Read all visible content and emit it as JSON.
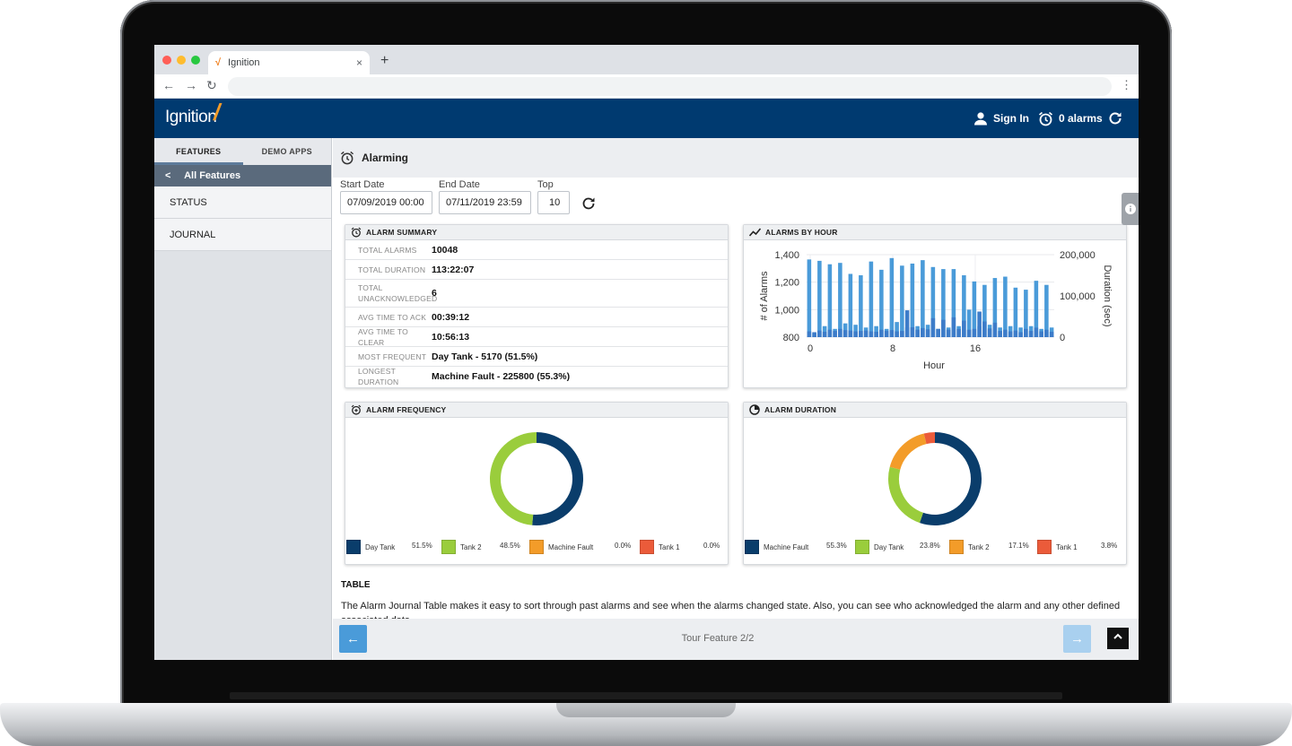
{
  "browser": {
    "tab_title": "Ignition",
    "favicon": "ignition-favicon",
    "new_tab": "+",
    "tab_close": "×",
    "back": "←",
    "forward": "→",
    "reload": "↻",
    "menu": "⋮"
  },
  "header": {
    "logo_text": "Ignition",
    "logo_mark": "/",
    "sign_in": "Sign In",
    "alarms": "0 alarms"
  },
  "sidebar": {
    "tabs": [
      {
        "label": "FEATURES",
        "active": true
      },
      {
        "label": "DEMO APPS",
        "active": false
      }
    ],
    "back_chevron": "<",
    "back_label": "All Features",
    "items": [
      {
        "label": "STATUS"
      },
      {
        "label": "JOURNAL"
      }
    ]
  },
  "main": {
    "title": "Alarming",
    "filters": {
      "start_label": "Start Date",
      "start_value": "07/09/2019 00:00",
      "end_label": "End Date",
      "end_value": "07/11/2019 23:59",
      "top_label": "Top",
      "top_value": "10"
    },
    "summary": {
      "title": "ALARM SUMMARY",
      "rows": [
        {
          "label": "TOTAL ALARMS",
          "value": "10048"
        },
        {
          "label": "TOTAL DURATION",
          "value": "113:22:07"
        },
        {
          "label": "TOTAL UNACKNOWLEDGED",
          "value": "6"
        },
        {
          "label": "AVG TIME TO ACK",
          "value": "00:39:12"
        },
        {
          "label": "AVG TIME TO CLEAR",
          "value": "10:56:13"
        },
        {
          "label": "MOST FREQUENT",
          "value": "Day Tank - 5170 (51.5%)"
        },
        {
          "label": "LONGEST DURATION",
          "value": "Machine Fault - 225800 (55.3%)"
        }
      ]
    },
    "table": {
      "title": "TABLE",
      "description": "The Alarm Journal Table makes it easy to sort through past alarms and see when the alarms changed state. Also, you can see who acknowledged the alarm and any other defined associated data."
    },
    "tour": {
      "label": "Tour Feature 2/2",
      "prev": "←",
      "next": "→",
      "scroll_top": "^"
    }
  },
  "chart_data": [
    {
      "type": "bar",
      "title": "ALARMS BY HOUR",
      "xlabel": "Hour",
      "ylabel": "# of Alarms",
      "y2label": "Duration (sec)",
      "x_ticks": [
        "0",
        "8",
        "16"
      ],
      "y_ticks": [
        "1,400",
        "1,200",
        "1,000",
        "800"
      ],
      "y2_ticks": [
        "200,000",
        "100,000",
        "0"
      ],
      "ylim": [
        800,
        1400
      ],
      "y2lim": [
        0,
        200000
      ],
      "colors": {
        "alarms": "#4a9bd9",
        "duration": "#3d7cc9"
      },
      "x": [
        0,
        0.5,
        1,
        1.5,
        2,
        2.5,
        3,
        3.5,
        4,
        4.5,
        5,
        5.5,
        6,
        6.5,
        7,
        7.5,
        8,
        8.5,
        9,
        9.5,
        10,
        10.5,
        11,
        11.5,
        12,
        12.5,
        13,
        13.5,
        14,
        14.5,
        15,
        15.5,
        16,
        16.5,
        17,
        17.5,
        18,
        18.5,
        19,
        19.5,
        20,
        20.5,
        21,
        21.5,
        22,
        22.5,
        23,
        23.5
      ],
      "series": [
        {
          "name": "# of Alarms",
          "axis": "left",
          "values": [
            1365,
            830,
            1355,
            880,
            1330,
            860,
            1340,
            900,
            1260,
            890,
            1250,
            870,
            1350,
            880,
            1290,
            860,
            1375,
            910,
            1320,
            870,
            1335,
            880,
            1360,
            890,
            1310,
            860,
            1295,
            870,
            1295,
            880,
            1250,
            1000,
            1205,
            880,
            1180,
            890,
            1230,
            870,
            1240,
            880,
            1160,
            870,
            1145,
            880,
            1210,
            860,
            1180,
            870
          ]
        },
        {
          "name": "Duration (sec)",
          "axis": "right",
          "values": [
            14000,
            12000,
            16000,
            13000,
            18000,
            15000,
            20000,
            17000,
            16000,
            14000,
            15000,
            16000,
            14000,
            13000,
            18000,
            15000,
            17000,
            14000,
            15000,
            65000,
            24000,
            18000,
            22000,
            19000,
            46000,
            20000,
            42000,
            18000,
            48000,
            20000,
            40000,
            18000,
            20000,
            62000,
            38000,
            21000,
            35000,
            15000,
            18000,
            14000,
            16000,
            12000,
            20000,
            15000,
            23000,
            14000,
            18000,
            13000
          ]
        }
      ]
    },
    {
      "type": "pie",
      "title": "ALARM FREQUENCY",
      "donut": true,
      "slices": [
        {
          "label": "Day Tank",
          "value": 51.5,
          "pct": "51.5%",
          "color": "#0a3d6b"
        },
        {
          "label": "Tank 2",
          "value": 48.5,
          "pct": "48.5%",
          "color": "#9acd3c"
        },
        {
          "label": "Machine Fault",
          "value": 0.0,
          "pct": "0.0%",
          "color": "#f39c29"
        },
        {
          "label": "Tank 1",
          "value": 0.0,
          "pct": "0.0%",
          "color": "#eb5b3a"
        }
      ]
    },
    {
      "type": "pie",
      "title": "ALARM DURATION",
      "donut": true,
      "slices": [
        {
          "label": "Machine Fault",
          "value": 55.3,
          "pct": "55.3%",
          "color": "#0a3d6b"
        },
        {
          "label": "Day Tank",
          "value": 23.8,
          "pct": "23.8%",
          "color": "#9acd3c"
        },
        {
          "label": "Tank 2",
          "value": 17.1,
          "pct": "17.1%",
          "color": "#f39c29"
        },
        {
          "label": "Tank 1",
          "value": 3.8,
          "pct": "3.8%",
          "color": "#eb5b3a"
        }
      ]
    }
  ]
}
